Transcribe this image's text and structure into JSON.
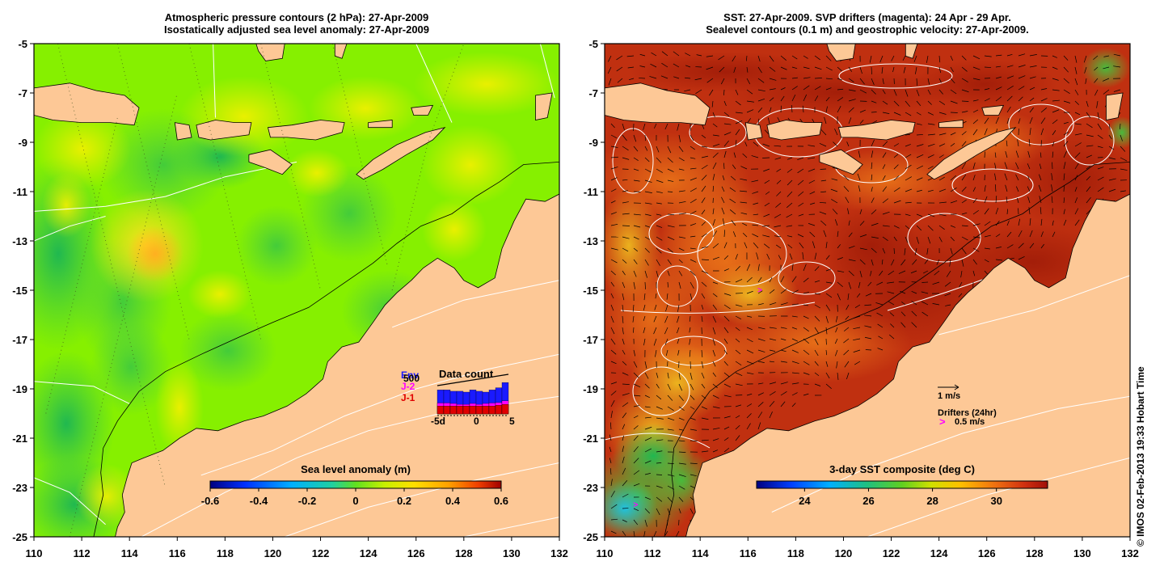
{
  "left_panel": {
    "title_line1": "Atmospheric pressure contours (2 hPa): 27-Apr-2009",
    "title_line2": "Isostatically adjusted sea level anomaly: 27-Apr-2009",
    "x_ticks": [
      "110",
      "112",
      "114",
      "116",
      "118",
      "120",
      "122",
      "124",
      "126",
      "128",
      "130",
      "132"
    ],
    "y_ticks": [
      "-5",
      "-7",
      "-9",
      "-11",
      "-13",
      "-15",
      "-17",
      "-19",
      "-21",
      "-23",
      "-25"
    ],
    "colorbar": {
      "title": "Sea level anomaly (m)",
      "ticks": [
        "-0.6",
        "-0.4",
        "-0.2",
        "0",
        "0.2",
        "0.4",
        "0.6"
      ],
      "range": [
        -0.6,
        0.6
      ]
    },
    "inset": {
      "title": "Data count",
      "legend": [
        {
          "label": "Env",
          "color": "#1a1aff"
        },
        {
          "label": "J-2",
          "color": "#ff00ff"
        },
        {
          "label": "J-1",
          "color": "#e00000"
        }
      ],
      "value_label": "500",
      "x_ticks": [
        "-5d",
        "0",
        "5"
      ],
      "bars": [
        {
          "env": 0.55,
          "j2": 0.25,
          "j1": 0.18
        },
        {
          "env": 0.55,
          "j2": 0.25,
          "j1": 0.18
        },
        {
          "env": 0.52,
          "j2": 0.24,
          "j1": 0.18
        },
        {
          "env": 0.52,
          "j2": 0.22,
          "j1": 0.18
        },
        {
          "env": 0.5,
          "j2": 0.22,
          "j1": 0.18
        },
        {
          "env": 0.55,
          "j2": 0.24,
          "j1": 0.18
        },
        {
          "env": 0.52,
          "j2": 0.22,
          "j1": 0.18
        },
        {
          "env": 0.5,
          "j2": 0.24,
          "j1": 0.18
        },
        {
          "env": 0.55,
          "j2": 0.25,
          "j1": 0.18
        },
        {
          "env": 0.6,
          "j2": 0.26,
          "j1": 0.2
        },
        {
          "env": 0.72,
          "j2": 0.3,
          "j1": 0.22
        }
      ]
    }
  },
  "right_panel": {
    "title_line1": "SST: 27-Apr-2009. SVP drifters (magenta): 24 Apr - 29 Apr.",
    "title_line2": "Sealevel contours (0.1 m) and geostrophic velocity: 27-Apr-2009.",
    "x_ticks": [
      "110",
      "112",
      "114",
      "116",
      "118",
      "120",
      "122",
      "124",
      "126",
      "128",
      "130",
      "132"
    ],
    "y_ticks": [
      "-5",
      "-7",
      "-9",
      "-11",
      "-13",
      "-15",
      "-17",
      "-19",
      "-21",
      "-23",
      "-25"
    ],
    "colorbar": {
      "title": "3-day SST composite (deg C)",
      "ticks": [
        "24",
        "26",
        "28",
        "30"
      ],
      "range": [
        22.5,
        31.6
      ]
    },
    "velocity_key": "1 m/s",
    "drifter_key_title": "Drifters (24hr)",
    "drifter_key_symbol": ">",
    "drifter_key_value": "0.5 m/s"
  },
  "credit": "© IMOS 02-Feb-2013 19:33 Hobart Time",
  "colors": {
    "land": "#fdc896",
    "slaGreen": "#86f000",
    "sstRed": "#c03010",
    "drifter": "#ff00ff"
  },
  "map_extent": {
    "lon": [
      110,
      132
    ],
    "lat": [
      -25,
      -5
    ]
  }
}
